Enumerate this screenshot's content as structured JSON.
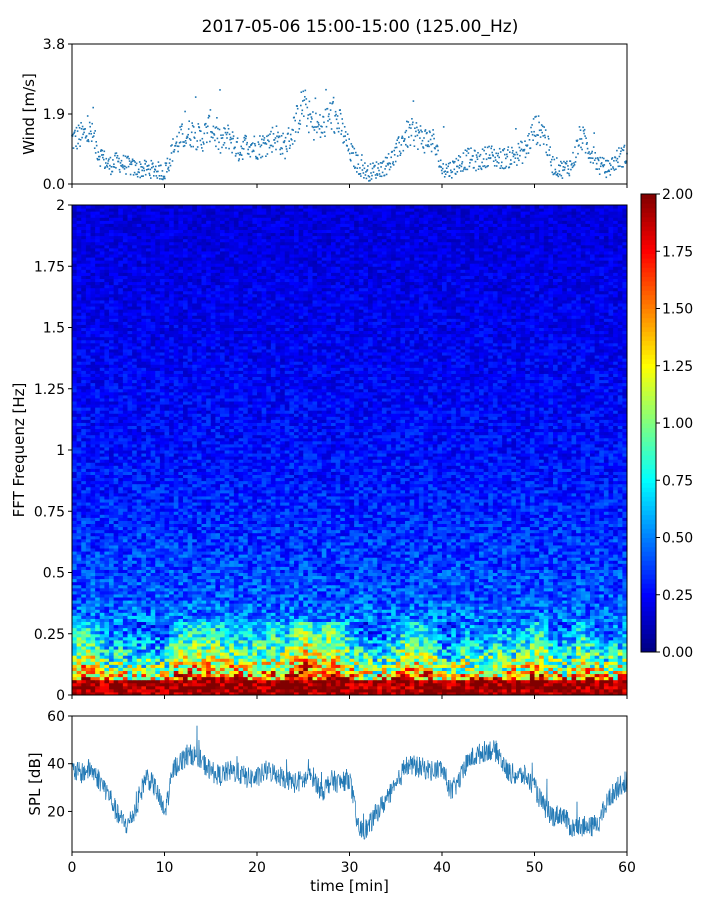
{
  "title": "2017-05-06 15:00-15:00 (125.00_Hz)",
  "colors": {
    "wind": "#1f77b4",
    "spl": "#1f77b4",
    "colormap": "jet"
  },
  "chart_data": [
    {
      "type": "scatter",
      "ylabel": "Wind [m/s]",
      "xlim": [
        0,
        60
      ],
      "ylim": [
        0.0,
        3.8
      ],
      "yticks": [
        0.0,
        1.9,
        3.8
      ],
      "ytick_labels": [
        "0.0",
        "1.9",
        "3.8"
      ],
      "x": [
        0,
        1,
        2,
        3,
        4,
        5,
        6,
        7,
        8,
        9,
        10,
        11,
        12,
        13,
        14,
        15,
        16,
        17,
        18,
        19,
        20,
        21,
        22,
        23,
        24,
        25,
        26,
        27,
        28,
        29,
        30,
        31,
        32,
        33,
        34,
        35,
        36,
        37,
        38,
        39,
        40,
        41,
        42,
        43,
        44,
        45,
        46,
        47,
        48,
        49,
        50,
        51,
        52,
        53,
        54,
        55,
        56,
        57,
        58,
        59,
        60
      ],
      "y": [
        1.2,
        1.3,
        1.4,
        0.8,
        0.5,
        0.6,
        0.5,
        0.4,
        0.4,
        0.4,
        0.3,
        1.0,
        1.3,
        1.4,
        1.2,
        1.6,
        1.1,
        1.3,
        0.9,
        1.1,
        1.0,
        1.1,
        1.3,
        1.0,
        1.5,
        2.2,
        1.6,
        1.5,
        1.9,
        1.6,
        0.9,
        0.5,
        0.3,
        0.4,
        0.5,
        0.8,
        1.3,
        1.4,
        1.2,
        1.2,
        0.4,
        0.4,
        0.6,
        0.7,
        0.6,
        0.8,
        0.7,
        0.7,
        0.8,
        0.9,
        1.5,
        1.4,
        0.5,
        0.4,
        0.5,
        1.3,
        0.9,
        0.5,
        0.4,
        0.7,
        0.8
      ]
    },
    {
      "type": "heatmap",
      "ylabel": "FFT Frequenz [Hz]",
      "xlim": [
        0,
        60
      ],
      "ylim": [
        0,
        2
      ],
      "yticks": [
        0,
        0.25,
        0.5,
        0.75,
        1,
        1.25,
        1.5,
        1.75,
        2
      ],
      "ytick_labels": [
        "0",
        "0.25",
        "0.5",
        "0.75",
        "1",
        "1.25",
        "1.5",
        "1.75",
        "2"
      ],
      "colorbar": {
        "range": [
          0.0,
          2.0
        ],
        "ticks": [
          0.0,
          0.25,
          0.5,
          0.75,
          1.0,
          1.25,
          1.5,
          1.75,
          2.0
        ],
        "tick_labels": [
          "0.00",
          "0.25",
          "0.50",
          "0.75",
          "1.00",
          "1.25",
          "1.50",
          "1.75",
          "2.00"
        ]
      },
      "freq_profile": {
        "freqs": [
          0.0,
          0.05,
          0.1,
          0.15,
          0.2,
          0.25,
          0.3,
          0.4,
          0.5,
          0.75,
          1.0,
          1.5,
          2.0
        ],
        "intensity": [
          2.0,
          1.6,
          1.2,
          0.95,
          0.75,
          0.6,
          0.5,
          0.42,
          0.38,
          0.32,
          0.27,
          0.22,
          0.18
        ]
      }
    },
    {
      "type": "line",
      "ylabel": "SPL [dB]",
      "xlabel": "time [min]",
      "xlim": [
        0,
        60
      ],
      "ylim": [
        3,
        60
      ],
      "yticks": [
        20,
        40,
        60
      ],
      "ytick_labels": [
        "20",
        "40",
        "60"
      ],
      "xticks": [
        0,
        10,
        20,
        30,
        40,
        50,
        60
      ],
      "xtick_labels": [
        "0",
        "10",
        "20",
        "30",
        "40",
        "50",
        "60"
      ],
      "x": [
        0,
        1,
        2,
        3,
        4,
        5,
        6,
        7,
        8,
        9,
        10,
        11,
        12,
        13,
        14,
        15,
        16,
        17,
        18,
        19,
        20,
        21,
        22,
        23,
        24,
        25,
        26,
        27,
        28,
        29,
        30,
        31,
        32,
        33,
        34,
        35,
        36,
        37,
        38,
        39,
        40,
        41,
        42,
        43,
        44,
        45,
        46,
        47,
        48,
        49,
        50,
        51,
        52,
        53,
        54,
        55,
        56,
        57,
        58,
        59,
        60
      ],
      "y": [
        37,
        36,
        38,
        33,
        27,
        18,
        14,
        22,
        35,
        30,
        19,
        38,
        42,
        44,
        41,
        37,
        35,
        37,
        36,
        34,
        34,
        37,
        36,
        34,
        32,
        33,
        35,
        28,
        33,
        32,
        34,
        12,
        13,
        20,
        25,
        30,
        39,
        39,
        38,
        37,
        38,
        28,
        34,
        42,
        44,
        46,
        45,
        37,
        35,
        35,
        30,
        22,
        18,
        19,
        13,
        14,
        13,
        16,
        25,
        30,
        33
      ]
    }
  ]
}
